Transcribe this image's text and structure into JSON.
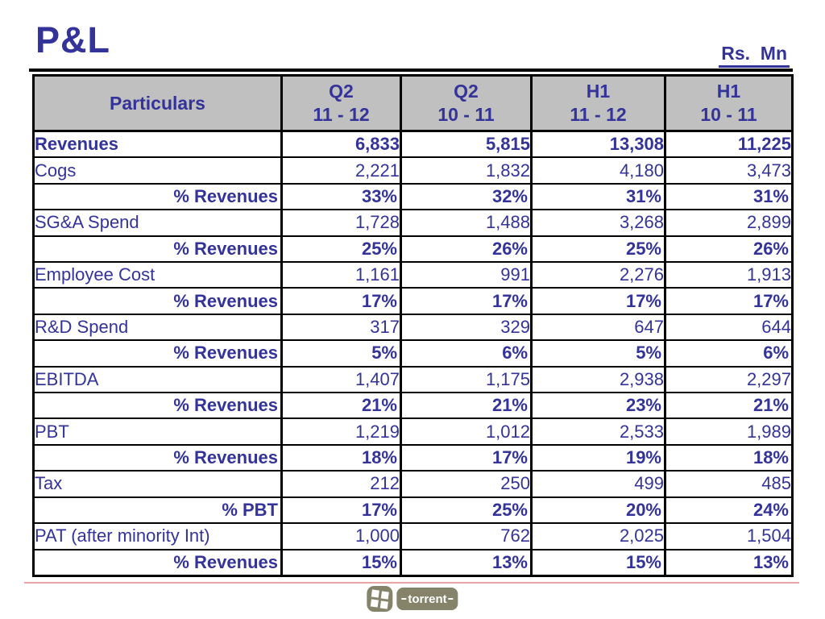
{
  "slide": {
    "title": "P&L",
    "unit_label": "Rs.  Mn"
  },
  "table": {
    "header": {
      "particulars": "Particulars",
      "columns": [
        {
          "line1": "Q2",
          "line2": "11 - 12"
        },
        {
          "line1": "Q2",
          "line2": "10 - 11"
        },
        {
          "line1": "H1",
          "line2": "11 - 12"
        },
        {
          "line1": "H1",
          "line2": "10 - 11"
        }
      ]
    },
    "rows": [
      {
        "label": "Revenues",
        "style": "metric-bold",
        "values": [
          "6,833",
          "5,815",
          "13,308",
          "11,225"
        ]
      },
      {
        "label": "Cogs",
        "style": "metric",
        "values": [
          "2,221",
          "1,832",
          "4,180",
          "3,473"
        ]
      },
      {
        "label": "% Revenues",
        "style": "pct",
        "values": [
          "33%",
          "32%",
          "31%",
          "31%"
        ]
      },
      {
        "label": "SG&A Spend",
        "style": "metric",
        "values": [
          "1,728",
          "1,488",
          "3,268",
          "2,899"
        ]
      },
      {
        "label": "% Revenues",
        "style": "pct",
        "values": [
          "25%",
          "26%",
          "25%",
          "26%"
        ]
      },
      {
        "label": "Employee Cost",
        "style": "metric",
        "values": [
          "1,161",
          "991",
          "2,276",
          "1,913"
        ]
      },
      {
        "label": "% Revenues",
        "style": "pct",
        "values": [
          "17%",
          "17%",
          "17%",
          "17%"
        ]
      },
      {
        "label": "R&D Spend",
        "style": "metric",
        "values": [
          "317",
          "329",
          "647",
          "644"
        ]
      },
      {
        "label": "% Revenues",
        "style": "pct",
        "values": [
          "5%",
          "6%",
          "5%",
          "6%"
        ]
      },
      {
        "label": "EBITDA",
        "style": "metric",
        "values": [
          "1,407",
          "1,175",
          "2,938",
          "2,297"
        ]
      },
      {
        "label": "% Revenues",
        "style": "pct",
        "values": [
          "21%",
          "21%",
          "23%",
          "21%"
        ]
      },
      {
        "label": "PBT",
        "style": "metric",
        "values": [
          "1,219",
          "1,012",
          "2,533",
          "1,989"
        ]
      },
      {
        "label": "% Revenues",
        "style": "pct",
        "values": [
          "18%",
          "17%",
          "19%",
          "18%"
        ]
      },
      {
        "label": "Tax",
        "style": "metric",
        "values": [
          "212",
          "250",
          "499",
          "485"
        ]
      },
      {
        "label": "% PBT",
        "style": "pct",
        "values": [
          "17%",
          "25%",
          "20%",
          "24%"
        ]
      },
      {
        "label": "PAT (after minority Int)",
        "style": "metric",
        "values": [
          "1,000",
          "762",
          "2,025",
          "1,504"
        ]
      },
      {
        "label": "% Revenues",
        "style": "pct",
        "values": [
          "15%",
          "13%",
          "15%",
          "13%"
        ]
      }
    ]
  },
  "footer": {
    "logo_text": "torrent"
  },
  "colors": {
    "text_blue": "#333399",
    "header_bg": "#c0c0c0",
    "border_black": "#000000",
    "pink_rule": "#eba4a4",
    "logo_olive": "#85846b"
  }
}
